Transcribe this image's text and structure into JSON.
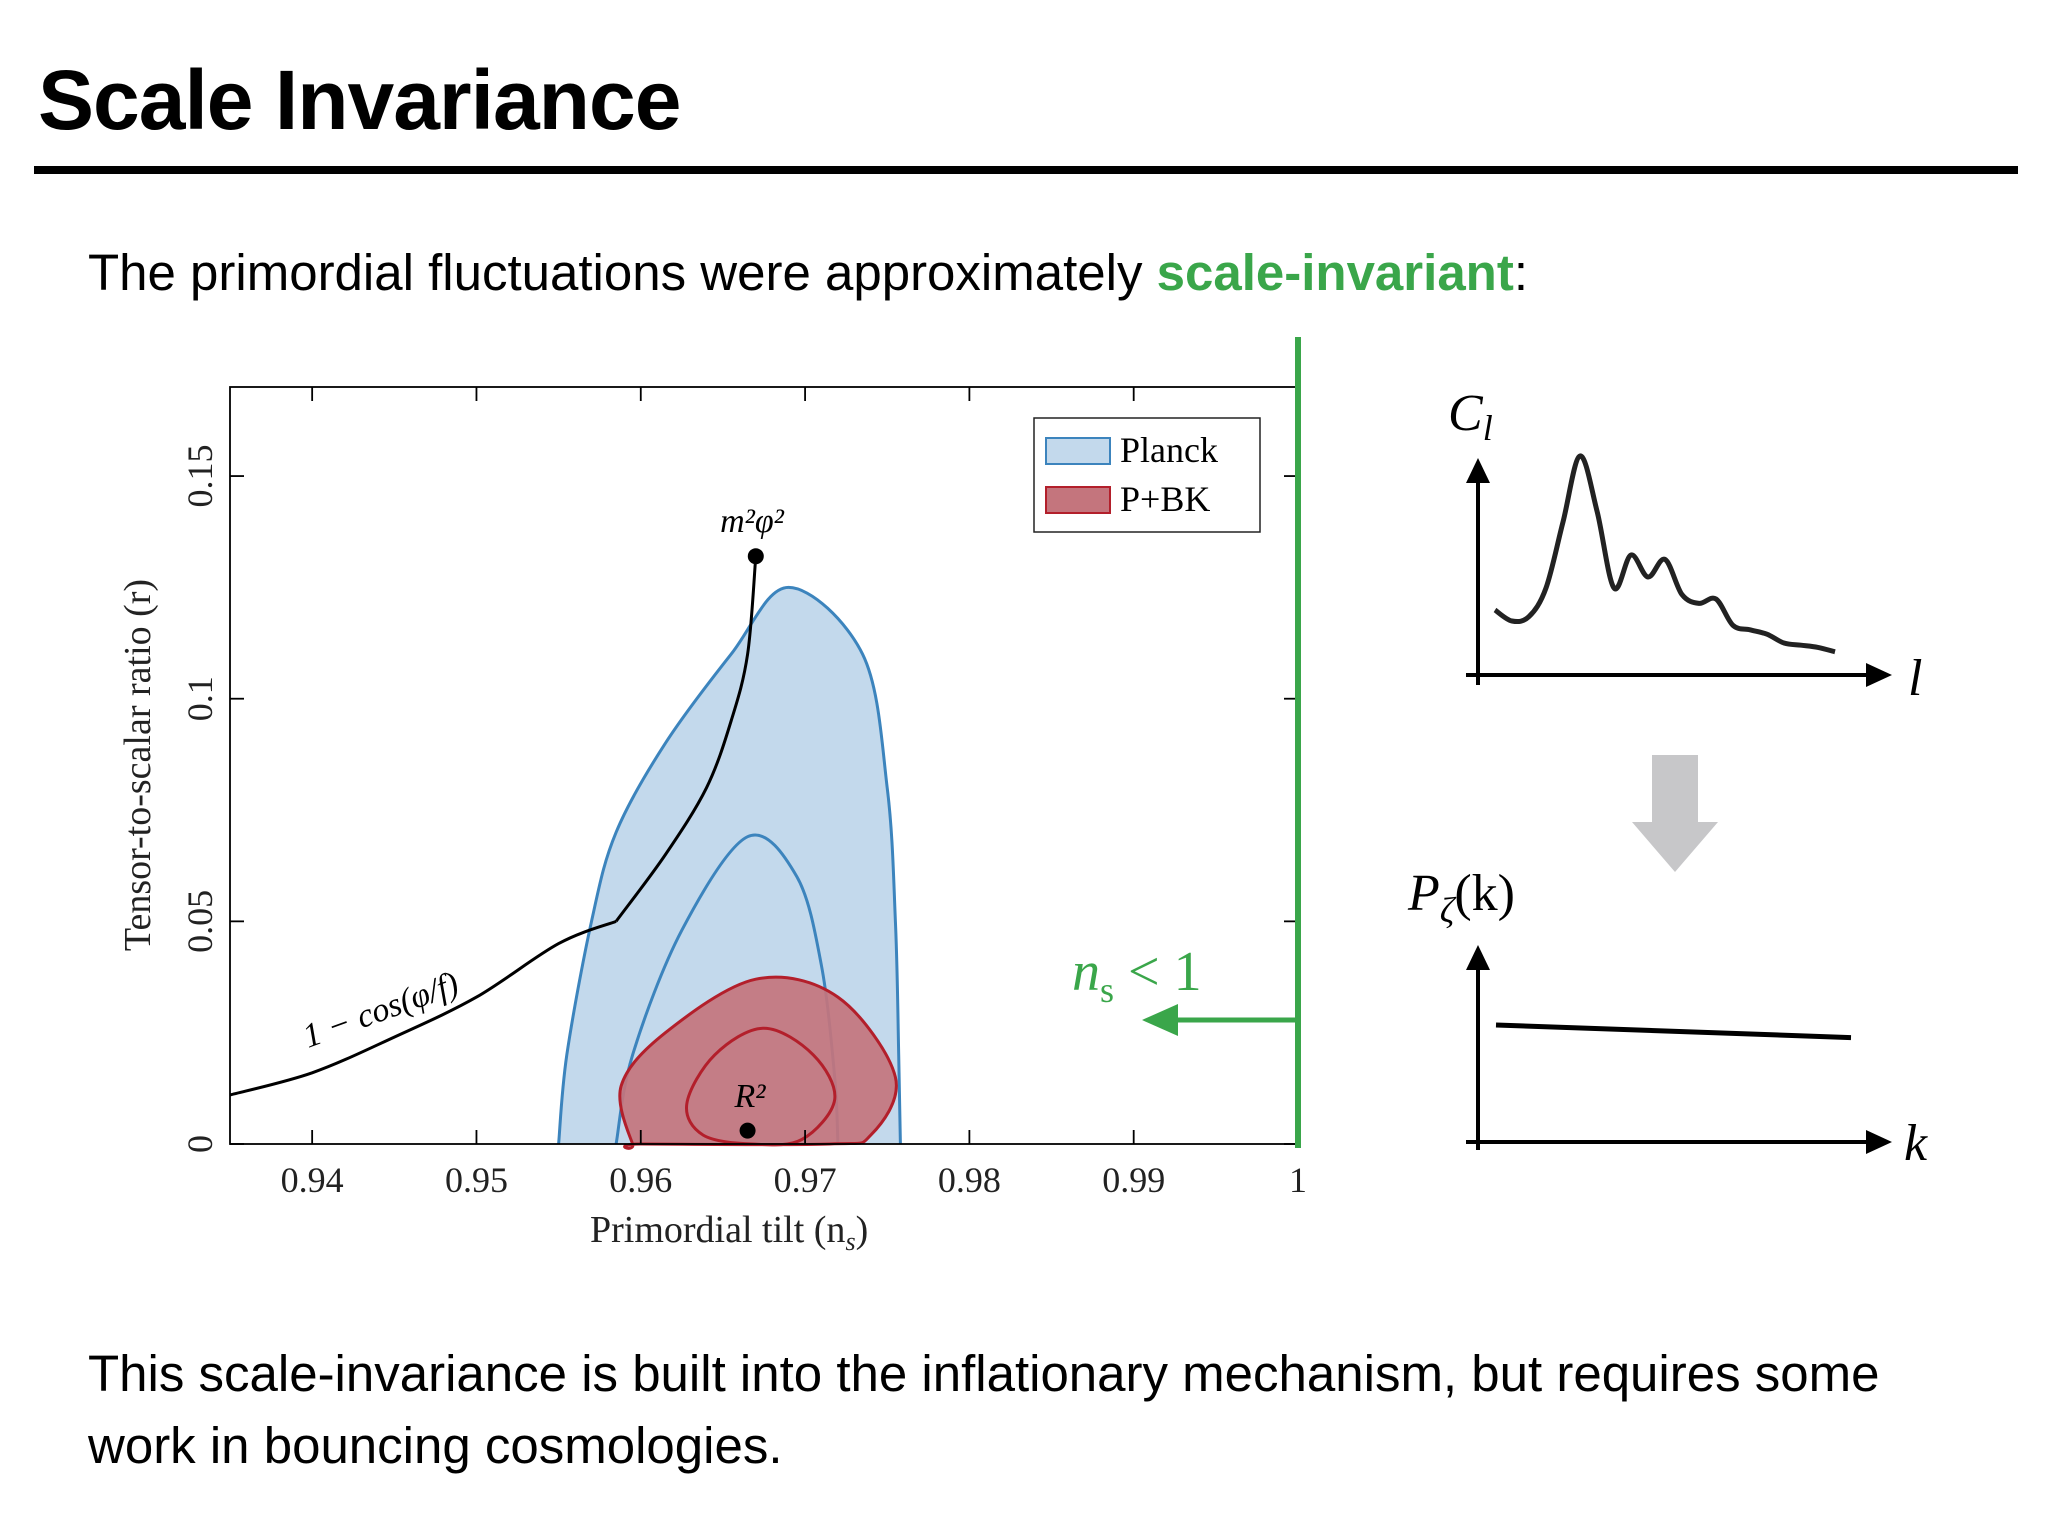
{
  "slide": {
    "title": "Scale Invariance",
    "intro_prefix": "The primordial fluctuations were approximately ",
    "intro_highlight": "scale-invariant",
    "intro_suffix": ":",
    "outro": "This scale-invariance is built into the inflationary mechanism, but requires some work in bouncing cosmologies."
  },
  "colors": {
    "accent_green": "#3aa64a",
    "planck_fill": "#c3d9ec",
    "planck_line": "#3c84bd",
    "pbk_fill": "#c4757d",
    "pbk_line": "#b31f2b",
    "arrow_gray": "#c7c7c9"
  },
  "chart_data": [
    {
      "type": "contour",
      "title": "",
      "xlabel": "Primordial tilt (n",
      "xlabel_sub": "s",
      "xlabel_end": ")",
      "ylabel": "Tensor-to-scalar ratio (r)",
      "xlim": [
        0.935,
        1.0
      ],
      "ylim": [
        0,
        0.17
      ],
      "xticks": [
        0.94,
        0.95,
        0.96,
        0.97,
        0.98,
        0.99,
        1
      ],
      "xtick_labels": [
        "0.94",
        "0.95",
        "0.96",
        "0.97",
        "0.98",
        "0.99",
        "1"
      ],
      "yticks": [
        0,
        0.05,
        0.1,
        0.15
      ],
      "ytick_labels": [
        "0",
        "0.05",
        "0.1",
        "0.15"
      ],
      "legend": {
        "position": "top-right",
        "entries": [
          "Planck",
          "P+BK"
        ]
      },
      "regions": [
        {
          "name": "Planck 95%",
          "points": [
            [
              0.955,
              0
            ],
            [
              0.9555,
              0.02
            ],
            [
              0.957,
              0.05
            ],
            [
              0.9585,
              0.07
            ],
            [
              0.9615,
              0.09
            ],
            [
              0.9655,
              0.11
            ],
            [
              0.969,
              0.125
            ],
            [
              0.9735,
              0.11
            ],
            [
              0.975,
              0.08
            ],
            [
              0.9755,
              0.05
            ],
            [
              0.9757,
              0.02
            ],
            [
              0.9758,
              0
            ]
          ]
        },
        {
          "name": "Planck 68%",
          "points": [
            [
              0.9585,
              0
            ],
            [
              0.9595,
              0.02
            ],
            [
              0.9625,
              0.048
            ],
            [
              0.9665,
              0.069
            ],
            [
              0.9695,
              0.06
            ],
            [
              0.971,
              0.04
            ],
            [
              0.9718,
              0.015
            ],
            [
              0.972,
              0
            ]
          ]
        },
        {
          "name": "P+BK 95%",
          "points": [
            [
              0.9595,
              0
            ],
            [
              0.9588,
              0.013
            ],
            [
              0.9615,
              0.025
            ],
            [
              0.967,
              0.037
            ],
            [
              0.972,
              0.033
            ],
            [
              0.9755,
              0.015
            ],
            [
              0.974,
              0.002
            ],
            [
              0.9715,
              0
            ],
            [
              0.96,
              0
            ]
          ]
        },
        {
          "name": "P+BK 68%",
          "points": [
            [
              0.9628,
              0.009
            ],
            [
              0.9645,
              0.02
            ],
            [
              0.9675,
              0.026
            ],
            [
              0.9705,
              0.02
            ],
            [
              0.9718,
              0.01
            ],
            [
              0.9698,
              0.001
            ],
            [
              0.9668,
              0
            ],
            [
              0.9638,
              0.002
            ]
          ]
        }
      ],
      "curves": [
        {
          "label": "m²φ²",
          "points": [
            [
              0.9585,
              0.05
            ],
            [
              0.9615,
              0.065
            ],
            [
              0.964,
              0.08
            ],
            [
              0.9655,
              0.095
            ],
            [
              0.9665,
              0.11
            ],
            [
              0.967,
              0.132
            ]
          ]
        },
        {
          "label": "1 − cos(φ/f)",
          "points": [
            [
              0.935,
              0.011
            ],
            [
              0.94,
              0.016
            ],
            [
              0.945,
              0.024
            ],
            [
              0.95,
              0.033
            ],
            [
              0.955,
              0.045
            ],
            [
              0.9585,
              0.05
            ]
          ]
        }
      ],
      "points": [
        {
          "label": "m²φ²",
          "x": 0.967,
          "y": 0.132
        },
        {
          "label": "R²",
          "x": 0.9665,
          "y": 0.003
        }
      ],
      "annotation": {
        "text": "n",
        "sub": "s",
        "rest": " < 1",
        "points_to": "left"
      }
    },
    {
      "type": "line",
      "ylabel": "C",
      "ylabel_sub": "l",
      "xlabel": "l",
      "x": [
        0,
        5,
        10,
        15,
        20,
        25,
        30,
        35,
        40,
        45,
        50,
        55,
        60,
        65,
        70,
        75,
        80,
        85,
        90,
        95,
        100
      ],
      "values": [
        0.25,
        0.2,
        0.22,
        0.35,
        0.65,
        0.95,
        0.7,
        0.35,
        0.5,
        0.4,
        0.48,
        0.32,
        0.28,
        0.3,
        0.18,
        0.16,
        0.14,
        0.1,
        0.09,
        0.08,
        0.06
      ]
    },
    {
      "type": "line",
      "ylabel": "P",
      "ylabel_sub": "ζ",
      "ylabel_end": "(k)",
      "xlabel": "k",
      "x": [
        0,
        100
      ],
      "values": [
        0.65,
        0.58
      ]
    }
  ]
}
